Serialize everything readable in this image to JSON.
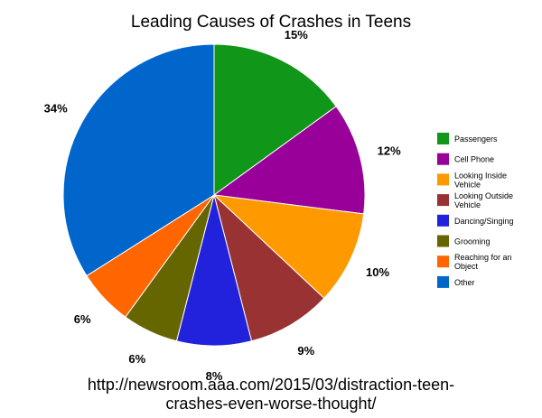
{
  "chart_data": {
    "type": "pie",
    "title": "Leading Causes of Crashes in Teens",
    "categories": [
      "Passengers",
      "Cell Phone",
      "Looking Inside Vehicle",
      "Looking Outside Vehicle",
      "Dancing/Singing",
      "Grooming",
      "Reaching for an Object",
      "Other"
    ],
    "legend_labels": [
      [
        "Passengers"
      ],
      [
        "Cell Phone"
      ],
      [
        "Looking Inside",
        "Vehicle"
      ],
      [
        "Looking Outside",
        "Vehicle"
      ],
      [
        "Dancing/Singing"
      ],
      [
        "Grooming"
      ],
      [
        "Reaching for an",
        "Object"
      ],
      [
        "Other"
      ]
    ],
    "values": [
      15,
      12,
      10,
      9,
      8,
      6,
      6,
      34
    ],
    "labels": [
      "15%",
      "12%",
      "10%",
      "9%",
      "8%",
      "6%",
      "6%",
      "34%"
    ],
    "colors": [
      "#109618",
      "#990099",
      "#FF9900",
      "#993333",
      "#2222DD",
      "#666600",
      "#FF6600",
      "#0066CC"
    ],
    "legend_position": "right"
  },
  "source": {
    "line1": "http://newsroom.aaa.com/2015/03/distraction-teen-",
    "line2": "crashes-even-worse-thought/"
  }
}
